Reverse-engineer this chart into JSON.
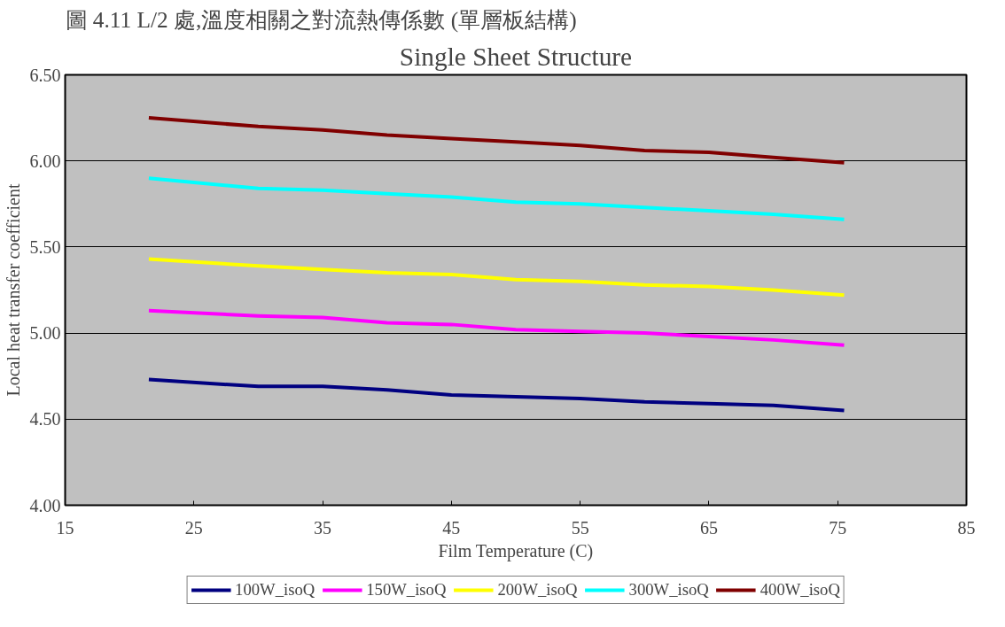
{
  "chart_data": {
    "type": "line",
    "title": "Single Sheet Structure",
    "xlabel": "Film Temperature (C)",
    "ylabel": "Local heat transfer coefficient",
    "annotations": [
      "圖 4.11 L/2 處,溫度相關之對流熱傳係數 (單層板結構)"
    ],
    "x": [
      21.5,
      30,
      35,
      40,
      45,
      50,
      55,
      60,
      65,
      70,
      75.5
    ],
    "series": [
      {
        "name": "100W_isoQ",
        "color": "#000080",
        "values": [
          4.73,
          4.69,
          4.69,
          4.67,
          4.64,
          4.63,
          4.62,
          4.6,
          4.59,
          4.58,
          4.55
        ]
      },
      {
        "name": "150W_isoQ",
        "color": "#ff00ff",
        "values": [
          5.13,
          5.1,
          5.09,
          5.06,
          5.05,
          5.02,
          5.01,
          5.0,
          4.98,
          4.96,
          4.93
        ]
      },
      {
        "name": "200W_isoQ",
        "color": "#ffff00",
        "values": [
          5.43,
          5.39,
          5.37,
          5.35,
          5.34,
          5.31,
          5.3,
          5.28,
          5.27,
          5.25,
          5.22
        ]
      },
      {
        "name": "300W_isoQ",
        "color": "#00ffff",
        "values": [
          5.9,
          5.84,
          5.83,
          5.81,
          5.79,
          5.76,
          5.75,
          5.73,
          5.71,
          5.69,
          5.66
        ]
      },
      {
        "name": "400W_isoQ",
        "color": "#800000",
        "values": [
          6.25,
          6.2,
          6.18,
          6.15,
          6.13,
          6.11,
          6.09,
          6.06,
          6.05,
          6.02,
          5.99
        ]
      }
    ],
    "xlim": [
      15,
      85
    ],
    "xticks": [
      15,
      25,
      35,
      45,
      55,
      65,
      75,
      85
    ],
    "ylim": [
      4.0,
      6.5
    ],
    "yticks": [
      {
        "value": 4.0,
        "label": "4.00"
      },
      {
        "value": 4.5,
        "label": "4.50"
      },
      {
        "value": 5.0,
        "label": "5.00"
      },
      {
        "value": 5.5,
        "label": "5.50"
      },
      {
        "value": 6.0,
        "label": "6.00"
      },
      {
        "value": 6.5,
        "label": "6.50"
      }
    ],
    "grid": "y",
    "legend": "bottom",
    "marker": "none",
    "line_style": "solid"
  }
}
